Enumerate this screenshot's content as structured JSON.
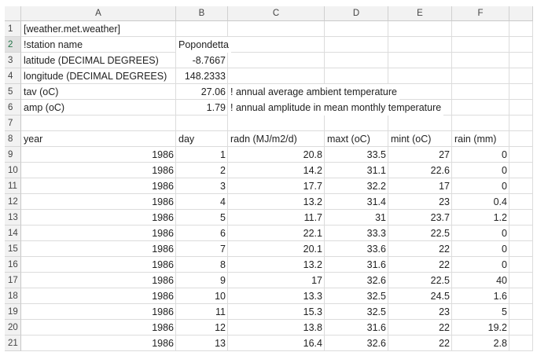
{
  "column_headers": [
    "A",
    "B",
    "C",
    "D",
    "E",
    "F"
  ],
  "row_numbers": [
    1,
    2,
    3,
    4,
    5,
    6,
    7,
    8,
    9,
    10,
    11,
    12,
    13,
    14,
    15,
    16,
    17,
    18,
    19,
    20,
    21
  ],
  "rows": [
    [
      "[weather.met.weather]"
    ],
    [
      "!station name",
      "Popondetta"
    ],
    [
      "latitude (DECIMAL DEGREES)",
      "-8.7667"
    ],
    [
      "longitude (DECIMAL DEGREES)",
      "148.2333"
    ],
    [
      "tav (oC)",
      "27.06",
      "! annual average ambient temperature"
    ],
    [
      "amp (oC)",
      "1.79",
      "! annual amplitude in mean monthly temperature"
    ],
    [],
    [
      "year",
      "day",
      "radn (MJ/m2/d)",
      "maxt (oC)",
      "mint (oC)",
      "rain (mm)"
    ],
    [
      "1986",
      "1",
      "20.8",
      "33.5",
      "27",
      "0"
    ],
    [
      "1986",
      "2",
      "14.2",
      "31.1",
      "22.6",
      "0"
    ],
    [
      "1986",
      "3",
      "17.7",
      "32.2",
      "17",
      "0"
    ],
    [
      "1986",
      "4",
      "13.2",
      "31.4",
      "23",
      "0.4"
    ],
    [
      "1986",
      "5",
      "11.7",
      "31",
      "23.7",
      "1.2"
    ],
    [
      "1986",
      "6",
      "22.1",
      "33.3",
      "22.5",
      "0"
    ],
    [
      "1986",
      "7",
      "20.1",
      "33.6",
      "22",
      "0"
    ],
    [
      "1986",
      "8",
      "13.2",
      "31.6",
      "22",
      "0"
    ],
    [
      "1986",
      "9",
      "17",
      "32.6",
      "22.5",
      "40"
    ],
    [
      "1986",
      "10",
      "13.3",
      "32.5",
      "24.5",
      "1.6"
    ],
    [
      "1986",
      "11",
      "15.3",
      "32.5",
      "23",
      "5"
    ],
    [
      "1986",
      "12",
      "13.8",
      "31.6",
      "22",
      "19.2"
    ],
    [
      "1986",
      "13",
      "16.4",
      "32.6",
      "22",
      "2.8"
    ]
  ]
}
